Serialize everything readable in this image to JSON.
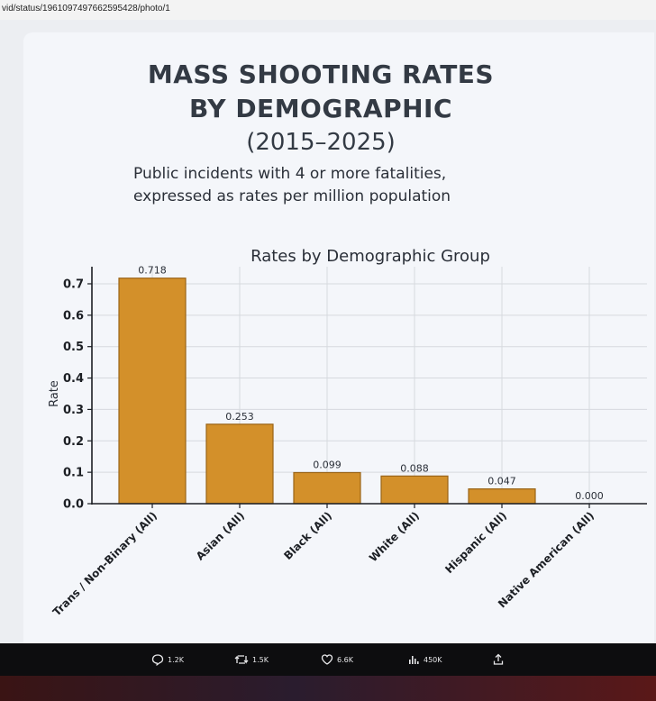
{
  "browser": {
    "url": "vid/status/1961097497662595428/photo/1"
  },
  "header": {
    "title_line1": "MASS SHOOTING RATES",
    "title_line2": "BY DEMOGRAPHIC",
    "years": "(2015–2025)",
    "subtitle_line1": "Public incidents with 4 or more fatalities,",
    "subtitle_line2": "expressed as rates per million population"
  },
  "footer": {
    "replies": "1.2K",
    "reposts": "1.5K",
    "likes": "6.6K",
    "views": "450K"
  },
  "chart_data": {
    "type": "bar",
    "title": "Rates by Demographic Group",
    "xlabel": "",
    "ylabel": "Rate",
    "categories": [
      "Trans / Non-Binary (All)",
      "Asian (All)",
      "Black (All)",
      "White (All)",
      "Hispanic (All)",
      "Native American (All)"
    ],
    "values": [
      0.718,
      0.253,
      0.099,
      0.088,
      0.047,
      0.0
    ],
    "data_labels": [
      "0.718",
      "0.253",
      "0.099",
      "0.088",
      "0.047",
      "0.000"
    ],
    "yticks": [
      "0.0",
      "0.1",
      "0.2",
      "0.3",
      "0.4",
      "0.5",
      "0.6",
      "0.7"
    ],
    "ylim": [
      0,
      0.75
    ],
    "grid": true,
    "bar_color": "#d3902a",
    "bar_edge_color": "#9a6418"
  }
}
